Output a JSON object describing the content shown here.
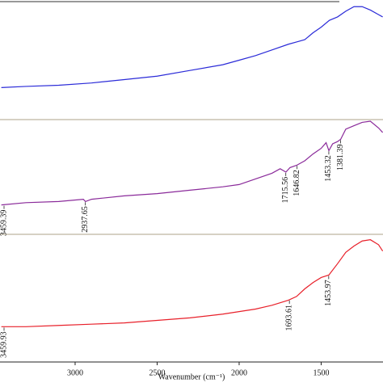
{
  "chart_data": [
    {
      "type": "line",
      "color": "#2b2bd8",
      "xlim": [
        3458,
        1123
      ],
      "ylim": [
        0,
        100
      ],
      "x": [
        3450,
        3300,
        3100,
        2900,
        2700,
        2500,
        2300,
        2100,
        2000,
        1900,
        1800,
        1700,
        1650,
        1600,
        1550,
        1500,
        1450,
        1400,
        1350,
        1300,
        1250,
        1200,
        1150,
        1125
      ],
      "values": [
        26,
        27,
        28,
        30,
        33,
        36,
        41,
        46,
        50,
        54,
        59,
        64,
        66,
        68,
        74,
        79,
        85,
        88,
        93,
        97,
        97,
        94,
        90,
        88
      ]
    },
    {
      "type": "line",
      "color": "#8a2a9a",
      "xlim": [
        3458,
        1123
      ],
      "ylim": [
        0,
        100
      ],
      "x": [
        3450,
        3300,
        3100,
        2950,
        2937,
        2900,
        2700,
        2500,
        2300,
        2100,
        2000,
        1900,
        1800,
        1750,
        1715,
        1690,
        1650,
        1600,
        1550,
        1500,
        1470,
        1453,
        1430,
        1400,
        1381,
        1350,
        1300,
        1250,
        1200,
        1150,
        1125
      ],
      "values": [
        26,
        28,
        29,
        31,
        29,
        31,
        34,
        36,
        39,
        42,
        44,
        49,
        54,
        58,
        55,
        59,
        61,
        65,
        71,
        76,
        81,
        74,
        80,
        82,
        84,
        93,
        96,
        99,
        100,
        94,
        90
      ],
      "peaks": [
        3459.39,
        2937.65,
        1715.56,
        1646.82,
        1453.32,
        1381.39
      ]
    },
    {
      "type": "line",
      "color": "#e8202a",
      "xlim": [
        3458,
        1123
      ],
      "ylim": [
        0,
        100
      ],
      "x": [
        3450,
        3300,
        3100,
        2900,
        2700,
        2500,
        2300,
        2100,
        2000,
        1900,
        1800,
        1700,
        1650,
        1600,
        1550,
        1500,
        1453,
        1400,
        1350,
        1300,
        1250,
        1200,
        1150,
        1125
      ],
      "values": [
        28,
        28,
        29,
        30,
        31,
        33,
        35,
        38,
        40,
        42,
        45,
        49,
        52,
        58,
        63,
        67,
        69,
        78,
        87,
        92,
        96,
        97,
        93,
        88
      ],
      "peaks": [
        3459.93,
        1693.61,
        1453.97
      ],
      "xticks": [
        3000,
        2500,
        2000,
        1500
      ],
      "xlabel": "Wavenumber (cm⁻¹)"
    }
  ]
}
